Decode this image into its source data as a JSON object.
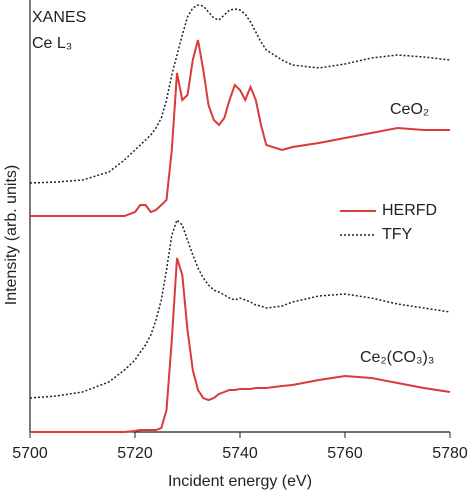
{
  "chart_data": {
    "type": "line",
    "annotations": [
      "XANES",
      "Ce L₃"
    ],
    "xlabel": "Incident energy (eV)",
    "ylabel": "Intensity (arb. units)",
    "x": [
      5700,
      5705,
      5710,
      5715,
      5718,
      5720,
      5721,
      5722,
      5723,
      5724,
      5725,
      5726,
      5727,
      5728,
      5729,
      5730,
      5731,
      5732,
      5733,
      5734,
      5735,
      5736,
      5737,
      5738,
      5739,
      5740,
      5741,
      5742,
      5743,
      5744,
      5745,
      5748,
      5750,
      5755,
      5760,
      5765,
      5770,
      5775,
      5780
    ],
    "xlim": [
      5700,
      5780
    ],
    "xticks": [
      5700,
      5720,
      5740,
      5760,
      5780
    ],
    "ylim": [
      0,
      430
    ],
    "legend": "right",
    "samples": [
      {
        "label": "CeO₂",
        "series": [
          {
            "name": "HERFD",
            "color": "#d93a3a",
            "dash": "solid",
            "values": [
              216,
              216,
              216,
              216,
              216,
              220,
              227,
              227,
              220,
              222,
              227,
              232,
              282,
              359,
              332,
              337,
              372,
              392,
              362,
              327,
              312,
              307,
              314,
              332,
              347,
              342,
              332,
              345,
              332,
              307,
              287,
              282,
              285,
              289,
              294,
              299,
              304,
              302,
              302
            ]
          },
          {
            "name": "TFY",
            "color": "#222222",
            "dash": "dotted",
            "values": [
              249,
              250,
              252,
              260,
              272,
              282,
              287,
              292,
              297,
              304,
              314,
              332,
              357,
              377,
              397,
              415,
              424,
              427,
              426,
              420,
              414,
              412,
              417,
              422,
              423,
              422,
              418,
              410,
              400,
              390,
              382,
              372,
              367,
              364,
              368,
              374,
              377,
              375,
              372
            ]
          }
        ]
      },
      {
        "label": "Ce₂(CO₃)₃",
        "series": [
          {
            "name": "HERFD",
            "color": "#d93a3a",
            "dash": "solid",
            "values": [
              0,
              0,
              0,
              0,
              0,
              1,
              2,
              2,
              2,
              2,
              4,
              22,
              92,
              174,
              157,
              102,
              62,
              42,
              34,
              32,
              34,
              38,
              40,
              42,
              42,
              43,
              43,
              43,
              44,
              44,
              44,
              46,
              47,
              52,
              56,
              54,
              49,
              44,
              40
            ]
          },
          {
            "name": "TFY",
            "color": "#222222",
            "dash": "dotted",
            "values": [
              34,
              36,
              40,
              50,
              62,
              72,
              80,
              87,
              97,
              112,
              132,
              162,
              197,
              212,
              207,
              192,
              177,
              164,
              154,
              147,
              142,
              140,
              137,
              134,
              132,
              134,
              132,
              130,
              127,
              126,
              124,
              126,
              130,
              136,
              138,
              134,
              128,
              124,
              120
            ]
          }
        ]
      }
    ]
  }
}
